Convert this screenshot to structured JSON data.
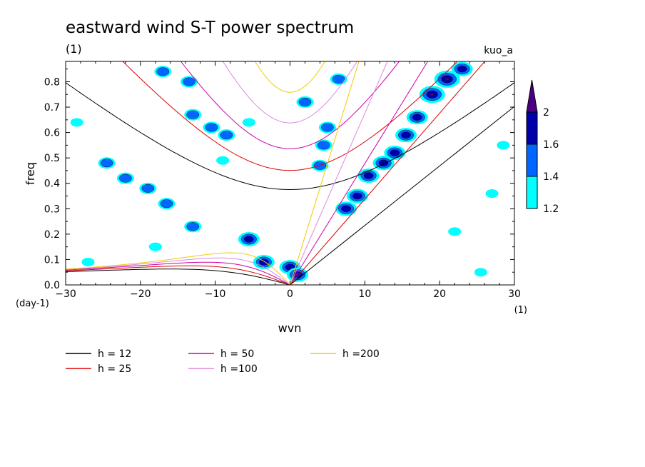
{
  "chart_data": {
    "type": "contour",
    "title": "eastward wind S-T power spectrum",
    "subtitle": "(1)",
    "tag": "kuo_a",
    "xlabel": "wvn",
    "ylabel": "freq",
    "x_unit": "(1)",
    "y_unit": "(day-1)",
    "xlim": [
      -30,
      30
    ],
    "ylim": [
      0,
      0.88
    ],
    "x_ticks": [
      -30,
      -20,
      -10,
      0,
      10,
      20,
      30
    ],
    "x_tick_labels": [
      "-30",
      "-20",
      "-10",
      "0",
      "10",
      "20",
      "30"
    ],
    "y_ticks": [
      0,
      0.1,
      0.2,
      0.3,
      0.4,
      0.5,
      0.6,
      0.7,
      0.8
    ],
    "y_tick_labels": [
      "0.0",
      "0.1",
      "0.2",
      "0.3",
      "0.4",
      "0.5",
      "0.6",
      "0.7",
      "0.8"
    ],
    "colorbar": {
      "levels": [
        1.2,
        1.4,
        1.6,
        2
      ],
      "level_labels": [
        "1.2",
        "1.4",
        "1.6",
        "2"
      ],
      "colors": [
        "#00ffff",
        "#0066ff",
        "#0000aa",
        "#4b0082"
      ]
    },
    "dispersion_curves": [
      {
        "label": "h = 12",
        "h": 12,
        "color": "#000000"
      },
      {
        "label": "h = 25",
        "h": 25,
        "color": "#dd0000"
      },
      {
        "label": "h = 50",
        "h": 50,
        "color": "#cc00aa"
      },
      {
        "label": "h =100",
        "h": 100,
        "color": "#dd88dd"
      },
      {
        "label": "h =200",
        "h": 200,
        "color": "#eecc00"
      }
    ],
    "power_blobs": [
      {
        "x": 0.0,
        "y": 0.07,
        "level": 1.6
      },
      {
        "x": -3.5,
        "y": 0.09,
        "level": 1.6
      },
      {
        "x": -5.5,
        "y": 0.18,
        "level": 1.6
      },
      {
        "x": 1.0,
        "y": 0.04,
        "level": 1.6
      },
      {
        "x": 2.0,
        "y": 0.72,
        "level": 1.4
      },
      {
        "x": 5.0,
        "y": 0.62,
        "level": 1.4
      },
      {
        "x": 4.5,
        "y": 0.55,
        "level": 1.4
      },
      {
        "x": 4.0,
        "y": 0.47,
        "level": 1.4
      },
      {
        "x": 6.5,
        "y": 0.81,
        "level": 1.4
      },
      {
        "x": 7.5,
        "y": 0.3,
        "level": 1.6
      },
      {
        "x": 9.0,
        "y": 0.35,
        "level": 1.6
      },
      {
        "x": 10.5,
        "y": 0.43,
        "level": 1.6
      },
      {
        "x": 12.5,
        "y": 0.48,
        "level": 1.6
      },
      {
        "x": 14.0,
        "y": 0.52,
        "level": 1.6
      },
      {
        "x": 15.5,
        "y": 0.59,
        "level": 1.6
      },
      {
        "x": 17.0,
        "y": 0.66,
        "level": 1.6
      },
      {
        "x": 19.0,
        "y": 0.75,
        "level": 2
      },
      {
        "x": 21.0,
        "y": 0.81,
        "level": 2
      },
      {
        "x": 23.0,
        "y": 0.85,
        "level": 1.6
      },
      {
        "x": -28.5,
        "y": 0.64,
        "level": 1.2
      },
      {
        "x": -24.5,
        "y": 0.48,
        "level": 1.4
      },
      {
        "x": -22.0,
        "y": 0.42,
        "level": 1.4
      },
      {
        "x": -19.0,
        "y": 0.38,
        "level": 1.4
      },
      {
        "x": -16.5,
        "y": 0.32,
        "level": 1.4
      },
      {
        "x": -13.0,
        "y": 0.23,
        "level": 1.4
      },
      {
        "x": -17.0,
        "y": 0.84,
        "level": 1.4
      },
      {
        "x": -13.5,
        "y": 0.8,
        "level": 1.4
      },
      {
        "x": -13.0,
        "y": 0.67,
        "level": 1.4
      },
      {
        "x": -10.5,
        "y": 0.62,
        "level": 1.4
      },
      {
        "x": -8.5,
        "y": 0.59,
        "level": 1.4
      },
      {
        "x": -5.5,
        "y": 0.64,
        "level": 1.2
      },
      {
        "x": -9.0,
        "y": 0.49,
        "level": 1.2
      },
      {
        "x": -27.0,
        "y": 0.09,
        "level": 1.2
      },
      {
        "x": -18.0,
        "y": 0.15,
        "level": 1.2
      },
      {
        "x": 22.0,
        "y": 0.21,
        "level": 1.2
      },
      {
        "x": 25.5,
        "y": 0.05,
        "level": 1.2
      },
      {
        "x": 28.5,
        "y": 0.55,
        "level": 1.2
      },
      {
        "x": 27.0,
        "y": 0.36,
        "level": 1.2
      }
    ]
  }
}
